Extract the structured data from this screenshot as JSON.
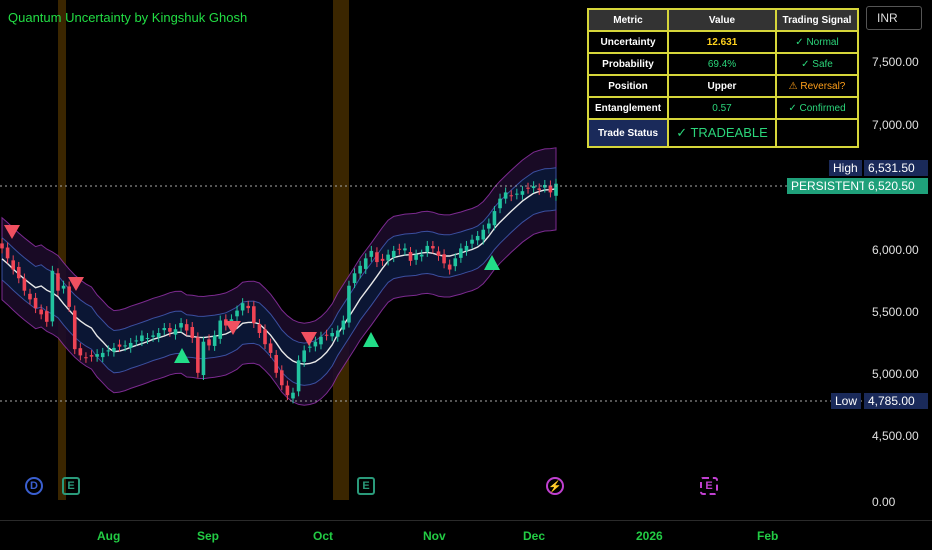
{
  "indicator": {
    "title": "Quantum Uncertainty by Kingshuk Ghosh"
  },
  "currency": "INR",
  "price_axis": {
    "ticks": [
      "7,500.00",
      "7,000.00",
      "6,000.00",
      "5,500.00",
      "5,000.00",
      "4,500.00",
      "0.00"
    ]
  },
  "tags": {
    "high_label": "High",
    "high_value": "6,531.50",
    "persistent_label": "PERSISTENT",
    "current_value": "6,520.50",
    "low_label": "Low",
    "low_value": "4,785.00"
  },
  "time_axis": {
    "labels": [
      "Aug",
      "Sep",
      "Oct",
      "Nov",
      "Dec",
      "2026",
      "Feb"
    ]
  },
  "table": {
    "headers": [
      "Metric",
      "Value",
      "Trading Signal"
    ],
    "rows": [
      {
        "metric": "Uncertainty",
        "value": "12.631",
        "signal": "✓ Normal"
      },
      {
        "metric": "Probability",
        "value": "69.4%",
        "signal": "✓ Safe"
      },
      {
        "metric": "Position",
        "value": "Upper",
        "signal": "⚠ Reversal?"
      },
      {
        "metric": "Entanglement",
        "value": "0.57",
        "signal": "✓ Confirmed"
      }
    ],
    "status": {
      "metric": "Trade Status",
      "value": "✓ TRADEABLE",
      "signal": ""
    }
  },
  "events": {
    "d": "D",
    "e": "E",
    "lightning": "⚡"
  },
  "colors": {
    "up": "#22c4a0",
    "down": "#ef4455",
    "mid_line": "#e8e8e8",
    "band_inner": "#3b4fa0",
    "band_outer": "#8a2fa0",
    "buy_marker": "#22dd88",
    "sell_marker": "#f05060",
    "highlight_col": "#4a3000",
    "accent_yellow": "#d6d63a",
    "value_yellow": "#ffd21e",
    "value_green": "#2bd57a",
    "warn_orange": "#ff9f1a"
  },
  "chart_data": {
    "type": "candlestick",
    "y_range": [
      4600,
      7700
    ],
    "closes": [
      6000,
      5920,
      5830,
      5760,
      5660,
      5590,
      5520,
      5470,
      5410,
      5820,
      5660,
      5700,
      5530,
      5190,
      5140,
      5120,
      5130,
      5150,
      5160,
      5180,
      5200,
      5210,
      5220,
      5240,
      5260,
      5300,
      5280,
      5300,
      5320,
      5360,
      5330,
      5350,
      5400,
      5340,
      5280,
      5000,
      5250,
      5220,
      5300,
      5420,
      5380,
      5430,
      5500,
      5560,
      5520,
      5400,
      5320,
      5230,
      5160,
      5000,
      4900,
      4820,
      4840,
      5100,
      5180,
      5210,
      5250,
      5290,
      5300,
      5320,
      5340,
      5420,
      5700,
      5800,
      5860,
      5920,
      5980,
      5890,
      5900,
      5950,
      5980,
      5990,
      6000,
      5900,
      5950,
      5950,
      6020,
      6000,
      5940,
      5880,
      5830,
      5920,
      6000,
      6020,
      6070,
      6100,
      6150,
      6200,
      6300,
      6400,
      6450,
      6420,
      6440,
      6460,
      6480,
      6500,
      6470,
      6510,
      6450,
      6520
    ]
  }
}
